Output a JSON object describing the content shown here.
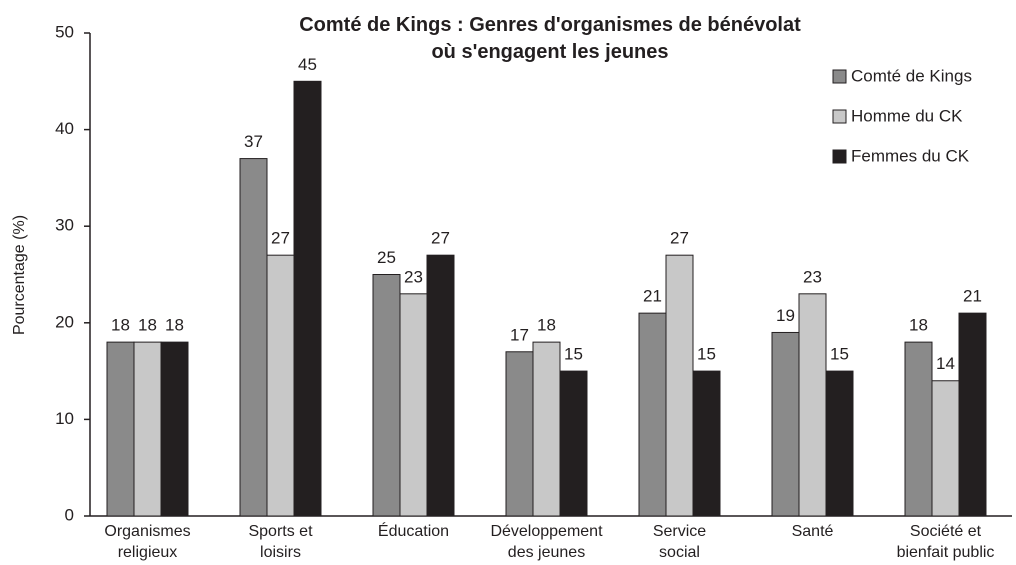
{
  "chart_data": {
    "type": "bar",
    "title": "Comté de Kings : Genres d'organismes de bénévolat\nοù s'engagent les jeunes",
    "ylabel": "Pourcentage (%)",
    "categories": [
      "Organismes\nreligieux",
      "Sports et\nloisirs",
      "Éducation",
      "Développement\ndes jeunes",
      "Service\nsocial",
      "Santé",
      "Société et\nbienfait public"
    ],
    "series": [
      {
        "name": "Comté de Kings",
        "color": "#8a8a8a",
        "values": [
          18,
          37,
          25,
          17,
          21,
          19,
          18
        ]
      },
      {
        "name": "Homme du CK",
        "color": "#c8c8c8",
        "values": [
          18,
          27,
          23,
          18,
          27,
          23,
          14
        ]
      },
      {
        "name": "Femmes du CK",
        "color": "#231f20",
        "values": [
          18,
          45,
          27,
          15,
          15,
          15,
          21
        ]
      }
    ],
    "ylim": [
      0,
      50
    ],
    "yticks": [
      0,
      10,
      20,
      30,
      40,
      50
    ],
    "grid": false,
    "legend": "upper right"
  }
}
